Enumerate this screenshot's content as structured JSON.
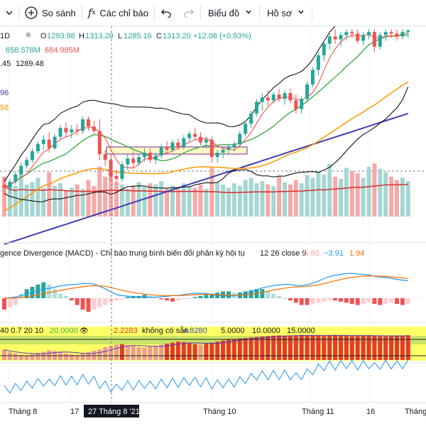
{
  "toolbar": {
    "compare_label": "So sánh",
    "indicators_label": "Các chỉ báo",
    "chart_label": "Biểu đồ",
    "profile_label": "Hồ sơ"
  },
  "legend": {
    "interval": "1D",
    "open_label": "O",
    "open": "1293.98",
    "high_label": "H",
    "high": "1313.20",
    "low_label": "L",
    "low": "1285.16",
    "close_label": "C",
    "close": "1313.20",
    "change": "+12.08 (+0.93%)",
    "vol_a": "658.578M",
    "vol_b": "684.985M",
    "line3_a": ".45",
    "line3_b": "1289.48",
    "line4": "96",
    "line5": "58"
  },
  "macd": {
    "title": "gence Divergence (MACD) - Chỉ báo trung bình biến đổi phân kỳ hội tụ",
    "params": "12 26 close 9",
    "hist": "−5.85",
    "macd": "−3.91",
    "signal": "1.94"
  },
  "osc": {
    "params": "40 0.7 20 10",
    "v1": "20.0000",
    "v2": "2.2283",
    "na": "không có sẵn",
    "v3": "4.8280",
    "v4": "5.0000",
    "v5": "10.0000",
    "v6": "15.0000"
  },
  "time_axis": {
    "t1": "Tháng 8",
    "t2": "17",
    "cursor": "27 Tháng 8 '21",
    "t3": "Tháng 10",
    "t4": "Tháng 11",
    "t5": "16",
    "t6": "Tháng"
  },
  "colors": {
    "up": "#26a69a",
    "down": "#ef5350",
    "vol_up": "#a5d6d2",
    "vol_down": "#f5a9a8",
    "bb": "#000000",
    "ma_fast": "#f44336",
    "ma_mid": "#4caf50",
    "ma_slow": "#ff9800",
    "ma_long": "#3f3fb0",
    "macd_line": "#2196f3",
    "signal_line": "#ff6d00",
    "osc_bg": "#ffff66"
  },
  "chart_data": {
    "type": "candlestick",
    "candles": [
      {
        "o": 1281,
        "h": 1286,
        "l": 1274,
        "c": 1279
      },
      {
        "o": 1279,
        "h": 1285,
        "l": 1275,
        "c": 1283
      },
      {
        "o": 1283,
        "h": 1290,
        "l": 1281,
        "c": 1288
      },
      {
        "o": 1288,
        "h": 1296,
        "l": 1286,
        "c": 1294
      },
      {
        "o": 1294,
        "h": 1300,
        "l": 1292,
        "c": 1298
      },
      {
        "o": 1298,
        "h": 1306,
        "l": 1296,
        "c": 1304
      },
      {
        "o": 1304,
        "h": 1311,
        "l": 1302,
        "c": 1309
      },
      {
        "o": 1309,
        "h": 1315,
        "l": 1305,
        "c": 1312
      },
      {
        "o": 1312,
        "h": 1317,
        "l": 1303,
        "c": 1306
      },
      {
        "o": 1306,
        "h": 1316,
        "l": 1305,
        "c": 1314
      },
      {
        "o": 1314,
        "h": 1322,
        "l": 1312,
        "c": 1320
      },
      {
        "o": 1320,
        "h": 1324,
        "l": 1314,
        "c": 1317
      },
      {
        "o": 1317,
        "h": 1322,
        "l": 1313,
        "c": 1319
      },
      {
        "o": 1319,
        "h": 1323,
        "l": 1315,
        "c": 1318
      },
      {
        "o": 1318,
        "h": 1328,
        "l": 1316,
        "c": 1326
      },
      {
        "o": 1326,
        "h": 1328,
        "l": 1318,
        "c": 1321
      },
      {
        "o": 1321,
        "h": 1325,
        "l": 1316,
        "c": 1318
      },
      {
        "o": 1318,
        "h": 1326,
        "l": 1298,
        "c": 1302
      },
      {
        "o": 1302,
        "h": 1305,
        "l": 1294,
        "c": 1298
      },
      {
        "o": 1298,
        "h": 1301,
        "l": 1284,
        "c": 1287
      },
      {
        "o": 1287,
        "h": 1291,
        "l": 1282,
        "c": 1285
      },
      {
        "o": 1285,
        "h": 1297,
        "l": 1283,
        "c": 1295
      },
      {
        "o": 1295,
        "h": 1302,
        "l": 1291,
        "c": 1299
      },
      {
        "o": 1299,
        "h": 1304,
        "l": 1292,
        "c": 1296
      },
      {
        "o": 1296,
        "h": 1302,
        "l": 1294,
        "c": 1300
      },
      {
        "o": 1300,
        "h": 1306,
        "l": 1297,
        "c": 1303
      },
      {
        "o": 1303,
        "h": 1306,
        "l": 1296,
        "c": 1298
      },
      {
        "o": 1298,
        "h": 1303,
        "l": 1295,
        "c": 1301
      },
      {
        "o": 1301,
        "h": 1309,
        "l": 1299,
        "c": 1307
      },
      {
        "o": 1307,
        "h": 1311,
        "l": 1303,
        "c": 1305
      },
      {
        "o": 1305,
        "h": 1312,
        "l": 1303,
        "c": 1310
      },
      {
        "o": 1310,
        "h": 1313,
        "l": 1305,
        "c": 1307
      },
      {
        "o": 1307,
        "h": 1315,
        "l": 1305,
        "c": 1313
      },
      {
        "o": 1313,
        "h": 1318,
        "l": 1310,
        "c": 1316
      },
      {
        "o": 1316,
        "h": 1320,
        "l": 1312,
        "c": 1314
      },
      {
        "o": 1314,
        "h": 1317,
        "l": 1308,
        "c": 1310
      },
      {
        "o": 1310,
        "h": 1314,
        "l": 1306,
        "c": 1312
      },
      {
        "o": 1312,
        "h": 1314,
        "l": 1296,
        "c": 1300
      },
      {
        "o": 1300,
        "h": 1305,
        "l": 1296,
        "c": 1303
      },
      {
        "o": 1303,
        "h": 1307,
        "l": 1299,
        "c": 1305
      },
      {
        "o": 1305,
        "h": 1309,
        "l": 1302,
        "c": 1307
      },
      {
        "o": 1307,
        "h": 1311,
        "l": 1304,
        "c": 1309
      },
      {
        "o": 1309,
        "h": 1318,
        "l": 1307,
        "c": 1316
      },
      {
        "o": 1316,
        "h": 1325,
        "l": 1314,
        "c": 1323
      },
      {
        "o": 1323,
        "h": 1332,
        "l": 1320,
        "c": 1330
      },
      {
        "o": 1330,
        "h": 1340,
        "l": 1328,
        "c": 1338
      },
      {
        "o": 1338,
        "h": 1344,
        "l": 1332,
        "c": 1341
      },
      {
        "o": 1341,
        "h": 1346,
        "l": 1335,
        "c": 1339
      },
      {
        "o": 1339,
        "h": 1345,
        "l": 1337,
        "c": 1343
      },
      {
        "o": 1343,
        "h": 1347,
        "l": 1338,
        "c": 1340
      },
      {
        "o": 1340,
        "h": 1346,
        "l": 1336,
        "c": 1344
      },
      {
        "o": 1344,
        "h": 1347,
        "l": 1337,
        "c": 1339
      },
      {
        "o": 1339,
        "h": 1343,
        "l": 1330,
        "c": 1333
      },
      {
        "o": 1333,
        "h": 1342,
        "l": 1330,
        "c": 1340
      },
      {
        "o": 1340,
        "h": 1352,
        "l": 1338,
        "c": 1350
      },
      {
        "o": 1350,
        "h": 1362,
        "l": 1348,
        "c": 1360
      },
      {
        "o": 1360,
        "h": 1372,
        "l": 1356,
        "c": 1370
      },
      {
        "o": 1370,
        "h": 1380,
        "l": 1366,
        "c": 1378
      },
      {
        "o": 1378,
        "h": 1385,
        "l": 1374,
        "c": 1383
      },
      {
        "o": 1383,
        "h": 1388,
        "l": 1378,
        "c": 1381
      },
      {
        "o": 1381,
        "h": 1386,
        "l": 1376,
        "c": 1384
      },
      {
        "o": 1384,
        "h": 1388,
        "l": 1380,
        "c": 1386
      },
      {
        "o": 1386,
        "h": 1388,
        "l": 1382,
        "c": 1385
      },
      {
        "o": 1385,
        "h": 1388,
        "l": 1378,
        "c": 1380
      },
      {
        "o": 1380,
        "h": 1386,
        "l": 1377,
        "c": 1384
      },
      {
        "o": 1384,
        "h": 1388,
        "l": 1381,
        "c": 1386
      },
      {
        "o": 1386,
        "h": 1388,
        "l": 1372,
        "c": 1376
      },
      {
        "o": 1376,
        "h": 1386,
        "l": 1374,
        "c": 1384
      },
      {
        "o": 1384,
        "h": 1388,
        "l": 1380,
        "c": 1386
      },
      {
        "o": 1386,
        "h": 1388,
        "l": 1382,
        "c": 1385
      },
      {
        "o": 1385,
        "h": 1388,
        "l": 1380,
        "c": 1383
      },
      {
        "o": 1383,
        "h": 1388,
        "l": 1381,
        "c": 1386
      },
      {
        "o": 1386,
        "h": 1388,
        "l": 1382,
        "c": 1387
      }
    ],
    "volume": [
      72,
      60,
      55,
      75,
      58,
      62,
      70,
      52,
      80,
      55,
      60,
      48,
      52,
      58,
      50,
      66,
      55,
      90,
      72,
      80,
      62,
      58,
      50,
      56,
      62,
      54,
      60,
      58,
      64,
      52,
      56,
      50,
      60,
      55,
      52,
      58,
      50,
      88,
      62,
      58,
      52,
      60,
      56,
      66,
      70,
      60,
      64,
      58,
      55,
      72,
      62,
      58,
      66,
      60,
      75,
      70,
      80,
      76,
      95,
      72,
      68,
      88,
      82,
      78,
      70,
      90,
      96,
      86,
      80,
      72,
      66,
      70,
      64
    ],
    "macd_hist": [
      -10,
      -8,
      -6,
      4,
      8,
      10,
      12,
      14,
      12,
      8,
      4,
      2,
      -2,
      -6,
      -10,
      -12,
      -10,
      -8,
      -6,
      -4,
      -2,
      -1,
      1,
      2,
      2,
      3,
      2,
      1,
      -1,
      -2,
      -3,
      -2,
      -1,
      0,
      1,
      2,
      3,
      4,
      5,
      6,
      6,
      5,
      5,
      6,
      7,
      8,
      8,
      6,
      4,
      2,
      0,
      -2,
      -4,
      -6,
      -6,
      -5,
      -4,
      -3,
      -2,
      -2,
      -3,
      -4,
      -5,
      -6,
      -5,
      -4,
      -5,
      -6,
      -5,
      -4,
      -5,
      -6,
      -5
    ],
    "osc_bars": [
      40,
      30,
      25,
      20,
      18,
      22,
      28,
      32,
      38,
      35,
      30,
      25,
      22,
      20,
      24,
      30,
      36,
      42,
      50,
      56,
      60,
      62,
      58,
      54,
      50,
      48,
      52,
      56,
      60,
      64,
      68,
      72,
      70,
      66,
      62,
      60,
      64,
      68,
      72,
      76,
      80,
      82,
      84,
      86,
      88,
      90,
      92,
      94,
      95,
      96,
      95,
      94,
      96,
      98,
      97,
      96,
      95,
      94,
      96,
      98,
      97,
      95,
      93,
      94,
      96,
      97,
      95,
      93,
      92,
      94,
      95,
      96,
      97
    ],
    "annotations": [
      "27 Tháng 8 '21"
    ]
  }
}
